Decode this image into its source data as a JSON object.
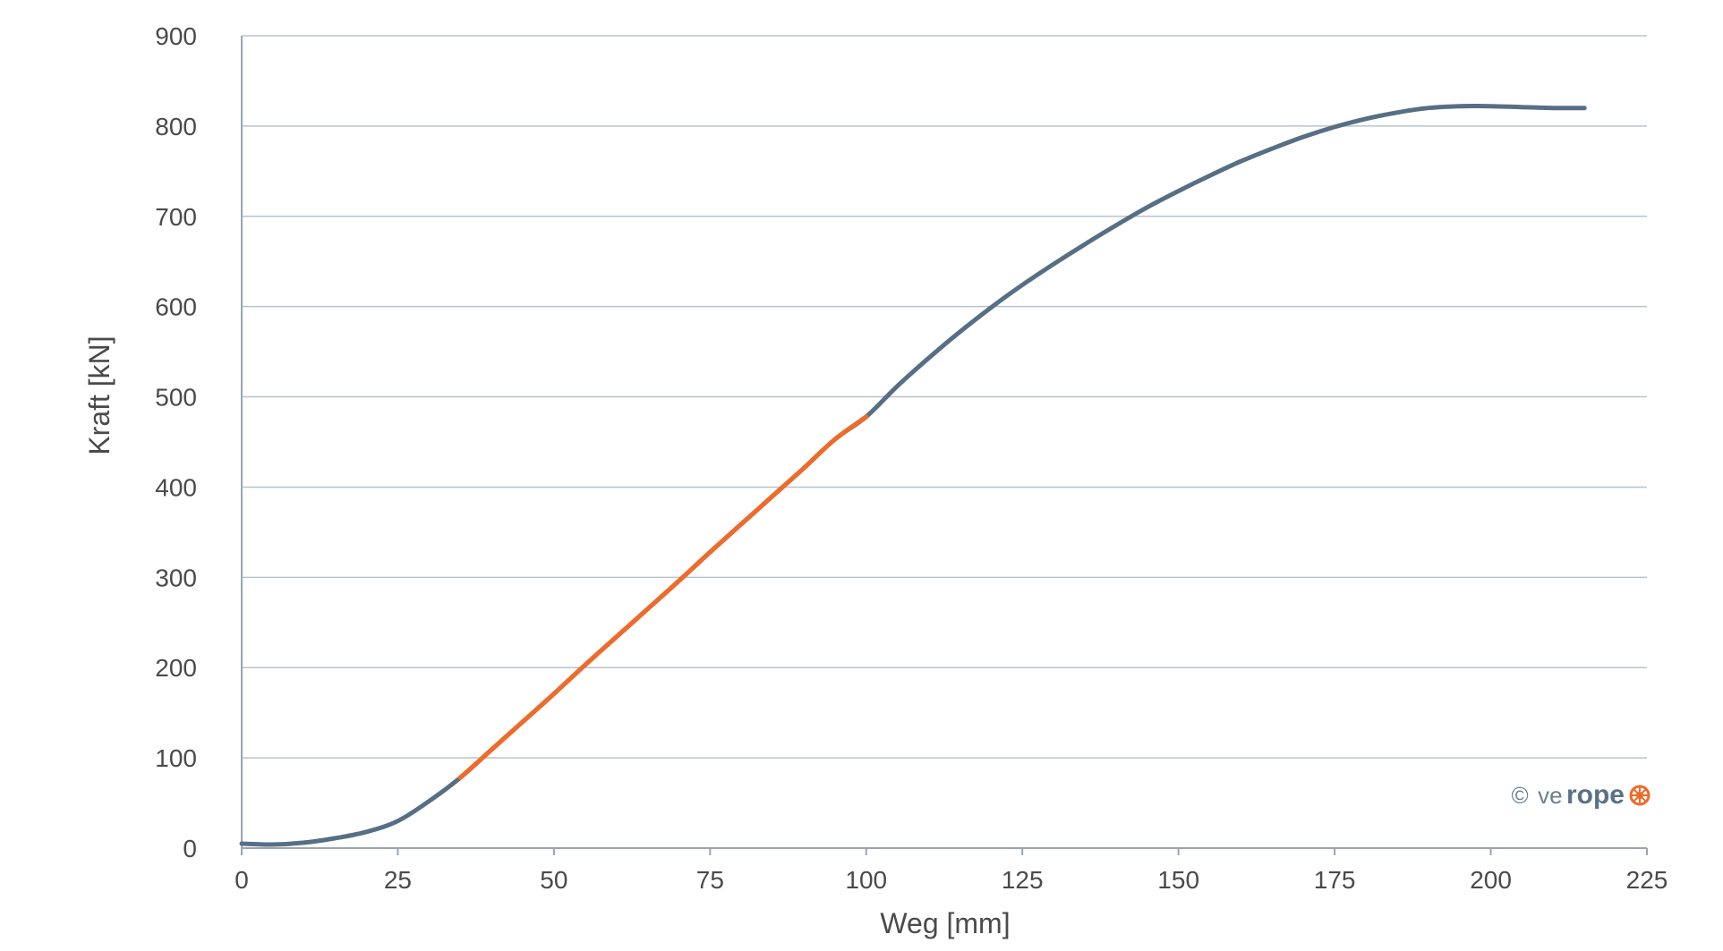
{
  "chart_data": {
    "type": "line",
    "xlabel": "Weg [mm]",
    "ylabel": "Kraft [kN]",
    "xlim": [
      0,
      225
    ],
    "ylim": [
      0,
      900
    ],
    "x_ticks": [
      0,
      25,
      50,
      75,
      100,
      125,
      150,
      175,
      200,
      225
    ],
    "y_ticks": [
      0,
      100,
      200,
      300,
      400,
      500,
      600,
      700,
      800,
      900
    ],
    "grid": "horizontal",
    "legend": "none",
    "series": [
      {
        "color": "#566f85",
        "x": [
          0,
          5,
          10,
          15,
          20,
          25,
          30,
          35,
          40,
          45,
          50,
          55,
          60,
          65,
          70,
          75,
          80,
          85,
          90,
          95,
          100,
          105,
          110,
          115,
          120,
          125,
          130,
          135,
          140,
          145,
          150,
          155,
          160,
          165,
          170,
          175,
          180,
          185,
          190,
          195,
          200,
          205,
          210,
          215
        ],
        "y": [
          5,
          4,
          6,
          11,
          18,
          30,
          52,
          78,
          109,
          140,
          171,
          203,
          234,
          265,
          296,
          328,
          359,
          390,
          421,
          453,
          478,
          512,
          543,
          572,
          599,
          624,
          647,
          669,
          690,
          710,
          728,
          745,
          761,
          775,
          788,
          799,
          808,
          815,
          820,
          822,
          822,
          821,
          820,
          820
        ]
      },
      {
        "color": "#f06a28",
        "x": [
          35,
          40,
          45,
          50,
          55,
          60,
          65,
          70,
          75,
          80,
          85,
          90,
          95,
          100
        ],
        "y": [
          78,
          109,
          140,
          171,
          203,
          234,
          265,
          296,
          328,
          359,
          390,
          421,
          453,
          478
        ]
      }
    ]
  },
  "watermark": {
    "copyright": "©",
    "brand_light": "ve",
    "brand_bold": "rope"
  },
  "colors": {
    "grid": "#b9c3cd",
    "axis": "#9aa5b0",
    "orange": "#f06a28"
  }
}
